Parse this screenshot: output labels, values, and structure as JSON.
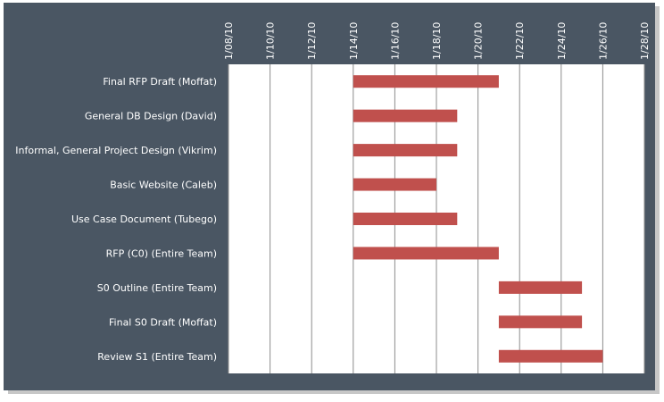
{
  "chart_data": {
    "type": "bar",
    "orientation": "horizontal",
    "stacked_gantt": true,
    "title": "",
    "xlabel": "",
    "ylabel": "",
    "grid": {
      "vertical": true,
      "horizontal": false
    },
    "legend": "none",
    "x_ticks": [
      "1/08/10",
      "1/10/10",
      "1/12/10",
      "1/14/10",
      "1/16/10",
      "1/18/10",
      "1/20/10",
      "1/22/10",
      "1/24/10",
      "1/26/10",
      "1/28/10"
    ],
    "xlim": [
      "2010-01-08",
      "2010-01-28"
    ],
    "categories": [
      "Final RFP Draft (Moffat)",
      "General DB Design  (David)",
      "Informal,  General Project Design (Vikrim)",
      "Basic Website (Caleb)",
      "Use Case  Document (Tubego)",
      "RFP (C0) (Entire  Team)",
      "S0 Outline (Entire Team)",
      "Final S0 Draft (Moffat)",
      "Review S1 (Entire Team)"
    ],
    "tasks": [
      {
        "start": "2010-01-14",
        "end": "2010-01-21"
      },
      {
        "start": "2010-01-14",
        "end": "2010-01-19"
      },
      {
        "start": "2010-01-14",
        "end": "2010-01-19"
      },
      {
        "start": "2010-01-14",
        "end": "2010-01-18"
      },
      {
        "start": "2010-01-14",
        "end": "2010-01-19"
      },
      {
        "start": "2010-01-14",
        "end": "2010-01-21"
      },
      {
        "start": "2010-01-21",
        "end": "2010-01-25"
      },
      {
        "start": "2010-01-21",
        "end": "2010-01-25"
      },
      {
        "start": "2010-01-21",
        "end": "2010-01-26"
      }
    ],
    "colors": {
      "bar": "#c0504d",
      "frame": "#4a5663",
      "plot_background": "#ffffff",
      "gridline": "#8c8c8c",
      "text": "#ffffff",
      "shadow": "#c7c7c7"
    }
  }
}
